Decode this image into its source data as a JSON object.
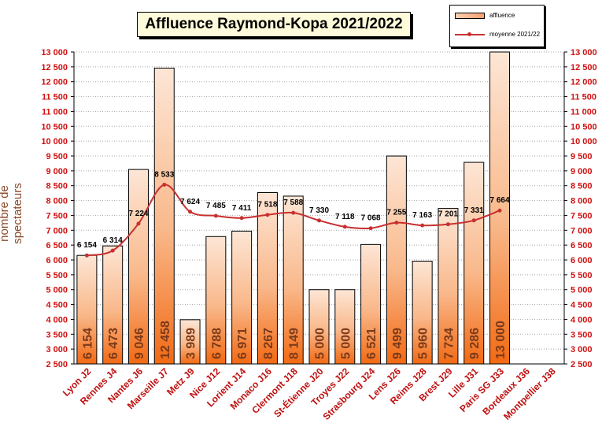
{
  "chart_data": {
    "type": "bar",
    "title": "Affluence Raymond-Kopa 2021/2022",
    "ylabel": "nombre de spectateurs",
    "ylim": [
      2500,
      13000
    ],
    "yticks": [
      "2 500",
      "3 000",
      "3 500",
      "4 000",
      "4 500",
      "5 000",
      "5 500",
      "6 000",
      "6 500",
      "7 000",
      "7 500",
      "8 000",
      "8 500",
      "9 000",
      "9 500",
      "10 000",
      "10 500",
      "11 000",
      "11 500",
      "12 000",
      "12 500",
      "13 000"
    ],
    "categories": [
      "Lyon J2",
      "Rennes J4",
      "Nantes J6",
      "Marseille J7",
      "Metz J9",
      "Nice J12",
      "Lorient J14",
      "Monaco J16",
      "Clermont J18",
      "St-Étienne J20",
      "Troyes J22",
      "Strasbourg J24",
      "Lens J26",
      "Reims J28",
      "Brest J29",
      "Lille J31",
      "Paris SG J33",
      "Bordeaux J36",
      "Montpellier J38"
    ],
    "series": [
      {
        "name": "affluence",
        "values": [
          6154,
          6473,
          9046,
          12458,
          3989,
          6788,
          6971,
          8267,
          8149,
          5000,
          5000,
          6521,
          9499,
          5960,
          7734,
          9286,
          13000,
          null,
          null
        ],
        "labels": [
          "6 154",
          "6 473",
          "9 046",
          "12 458",
          "3 989",
          "6 788",
          "6 971",
          "8 267",
          "8 149",
          "5 000",
          "5 000",
          "6 521",
          "9 499",
          "5 960",
          "7 734",
          "9 286",
          "13 000",
          "",
          ""
        ]
      },
      {
        "name": "moyenne 2021/22",
        "values": [
          6154,
          6314,
          7224,
          8533,
          7624,
          7485,
          7411,
          7518,
          7588,
          7330,
          7118,
          7068,
          7255,
          7163,
          7201,
          7331,
          7664,
          null,
          null
        ],
        "labels": [
          "6 154",
          "6 314",
          "7 224",
          "8 533",
          "7 624",
          "7 485",
          "7 411",
          "7 518",
          "7 588",
          "7 330",
          "7 118",
          "7 068",
          "7 255",
          "7 163",
          "7 201",
          "7 331",
          "7 664",
          "",
          ""
        ]
      }
    ],
    "legend": {
      "position": "top-right",
      "affluence_label": "affluence",
      "moyenne_label": "moyenne 2021/22"
    },
    "colors": {
      "bar_top": "#fde6d6",
      "bar_bottom": "#f26a14",
      "line": "#c83030",
      "tick_text": "#d01010",
      "category_text": "#c01010",
      "bar_label": "#7a3a1a"
    },
    "grid": true
  }
}
